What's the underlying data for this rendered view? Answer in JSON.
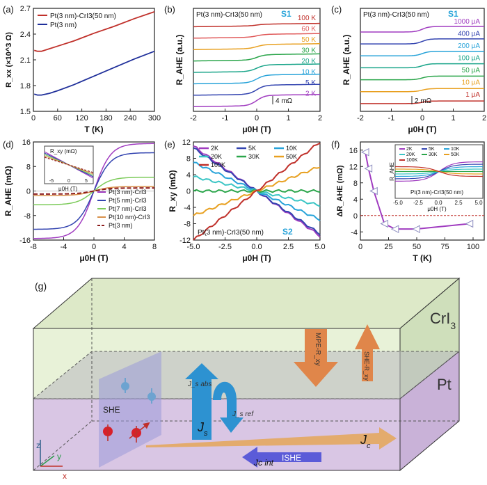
{
  "chart_data": [
    {
      "panel": "(a)",
      "type": "line",
      "xlabel": "T (K)",
      "ylabel": "R_xx (×10^3 Ω)",
      "xlim": [
        0,
        300
      ],
      "ylim": [
        1.5,
        2.7
      ],
      "xticks": [
        "0",
        "60",
        "120",
        "180",
        "240",
        "300"
      ],
      "yticks": [
        "1.5",
        "1.8",
        "2.1",
        "2.4",
        "2.7"
      ],
      "legend": "top-left",
      "series": [
        {
          "name": "Pt(3 nm)-CrI3(50 nm)",
          "color": "#c0302a",
          "x": [
            2,
            10,
            20,
            40,
            60,
            100,
            150,
            200,
            250,
            300
          ],
          "y": [
            2.21,
            2.2,
            2.2,
            2.23,
            2.26,
            2.32,
            2.41,
            2.49,
            2.58,
            2.66
          ]
        },
        {
          "name": "Pt(3 nm)",
          "color": "#1f2f9a",
          "x": [
            2,
            10,
            20,
            40,
            60,
            100,
            150,
            200,
            250,
            300
          ],
          "y": [
            1.7,
            1.69,
            1.69,
            1.71,
            1.74,
            1.81,
            1.91,
            2.01,
            2.11,
            2.2
          ]
        }
      ]
    },
    {
      "panel": "(b)",
      "type": "line",
      "xlabel": "μ0H (T)",
      "ylabel": "R_AHE (a.u.)",
      "xlim": [
        -2,
        2
      ],
      "xticks": [
        "-2",
        "-1",
        "0",
        "1",
        "2"
      ],
      "title_text": "Pt(3 nm)-CrI3(50 nm)",
      "tag": "S1",
      "scale_label": "4 mΩ",
      "series": [
        {
          "name": "100 K",
          "color": "#c0302a"
        },
        {
          "name": "60 K",
          "color": "#e05a5a"
        },
        {
          "name": "50 K",
          "color": "#e8a020"
        },
        {
          "name": "30 K",
          "color": "#2aa54a"
        },
        {
          "name": "20 K",
          "color": "#1aa58a"
        },
        {
          "name": "10 K",
          "color": "#27a3d9"
        },
        {
          "name": "5 K",
          "color": "#3344b0"
        },
        {
          "name": "2 K",
          "color": "#a03cc0"
        }
      ]
    },
    {
      "panel": "(c)",
      "type": "line",
      "xlabel": "μ0H (T)",
      "ylabel": "R_AHE (a.u.)",
      "xlim": [
        -2,
        2
      ],
      "xticks": [
        "-2",
        "-1",
        "0",
        "1",
        "2"
      ],
      "title_text": "Pt(3 nm)-CrI3(50 nm)",
      "tag": "S1",
      "scale_label": "2 mΩ",
      "series": [
        {
          "name": "1000 μA",
          "color": "#a03cc0"
        },
        {
          "name": "400 μA",
          "color": "#3344b0"
        },
        {
          "name": "200 μA",
          "color": "#27a3d9"
        },
        {
          "name": "100 μA",
          "color": "#1aa58a"
        },
        {
          "name": "50 μA",
          "color": "#2aa54a"
        },
        {
          "name": "10 μA",
          "color": "#e8a020"
        },
        {
          "name": "1 μA",
          "color": "#c0302a"
        }
      ]
    },
    {
      "panel": "(d)",
      "type": "line",
      "xlabel": "μ0H (T)",
      "ylabel": "R_AHE (mΩ)",
      "xlim": [
        -8,
        8
      ],
      "ylim": [
        -16,
        16
      ],
      "xticks": [
        "-8",
        "-4",
        "0",
        "4",
        "8"
      ],
      "yticks": [
        "-16",
        "-8",
        "0",
        "8",
        "16"
      ],
      "yticks_minor": [
        "-15",
        "-4",
        "4",
        "15"
      ],
      "series": [
        {
          "name": "Pt(3 nm)-CrI3",
          "color": "#a03cc0",
          "sat": 15.5
        },
        {
          "name": "Pt(5 nm)-CrI3",
          "color": "#3344b0",
          "sat": 12.5
        },
        {
          "name": "Pt(7 nm)-CrI3",
          "color": "#7ccb5a",
          "sat": 4.5
        },
        {
          "name": "Pt(10 nm)-CrI3",
          "color": "#d8904a",
          "sat": 1.5
        },
        {
          "name": "Pt(3 nm)",
          "color": "#8b1a1a",
          "sat": 1.0
        }
      ],
      "inset": {
        "xlabel": "μ0H (T)",
        "ylabel": "R_xy (mΩ)",
        "xticks": [
          "-5",
          "0",
          "5"
        ],
        "yticks": [
          "15",
          "0",
          "-15"
        ]
      }
    },
    {
      "panel": "(e)",
      "type": "line",
      "xlabel": "μ0H (T)",
      "ylabel": "R_xy (mΩ)",
      "xlim": [
        -5,
        5
      ],
      "ylim": [
        -12,
        12
      ],
      "xticks": [
        "-5.0",
        "-2.5",
        "0.0",
        "2.5",
        "5.0"
      ],
      "yticks": [
        "-12",
        "-8",
        "-4",
        "0",
        "4",
        "8",
        "12"
      ],
      "footer_text": "Pt(3 nm)-CrI3(50 nm)",
      "tag": "S2",
      "series": [
        {
          "name": "2K",
          "color": "#a03cc0",
          "slope": -2.2
        },
        {
          "name": "5K",
          "color": "#3344b0",
          "slope": -2.1
        },
        {
          "name": "10K",
          "color": "#27a3d9",
          "slope": -1.4
        },
        {
          "name": "20K",
          "color": "#3ac5c5",
          "slope": -0.7
        },
        {
          "name": "30K",
          "color": "#2aa54a",
          "slope": 0.0
        },
        {
          "name": "50K",
          "color": "#e8a020",
          "slope": 1.2
        },
        {
          "name": "100K",
          "color": "#c0302a",
          "slope": 2.4
        }
      ]
    },
    {
      "panel": "(f)",
      "type": "scatter",
      "xlabel": "T (K)",
      "ylabel": "ΔR_AHE (mΩ)",
      "xlim": [
        0,
        110
      ],
      "ylim": [
        -6,
        18
      ],
      "xticks": [
        "0",
        "25",
        "50",
        "75",
        "100"
      ],
      "yticks": [
        "-4",
        "0",
        "4",
        "8",
        "12",
        "16"
      ],
      "x": [
        2,
        5,
        10,
        20,
        30,
        50,
        100
      ],
      "y": [
        15.5,
        11.5,
        6.0,
        -2.0,
        -3.3,
        -3.3,
        -2.0
      ],
      "inset": {
        "xlabel": "μ0H (T)",
        "ylabel": "R_AHE",
        "title_text": "Pt(3 nm)-CrI3(50 nm)",
        "xticks": [
          "-5.0",
          "-2.5",
          "0.0",
          "2.5",
          "5.0"
        ],
        "legend": [
          "2K",
          "5K",
          "10K",
          "20K",
          "30K",
          "50K",
          "100K"
        ]
      }
    },
    {
      "panel": "(g)",
      "type": "diagram",
      "top_layer": "CrI3",
      "bottom_layer": "Pt",
      "labels": {
        "she": "SHE",
        "ishe": "ISHE",
        "js": "J_s",
        "js_abs": "J_s^abs",
        "js_ref": "J_s^ref",
        "jc": "J_c",
        "jc_int": "J_c^int",
        "mpe": "MPE-R_xy",
        "she_rxy": "SHE-R_xy"
      },
      "axes": [
        "z",
        "y",
        "x"
      ]
    }
  ]
}
